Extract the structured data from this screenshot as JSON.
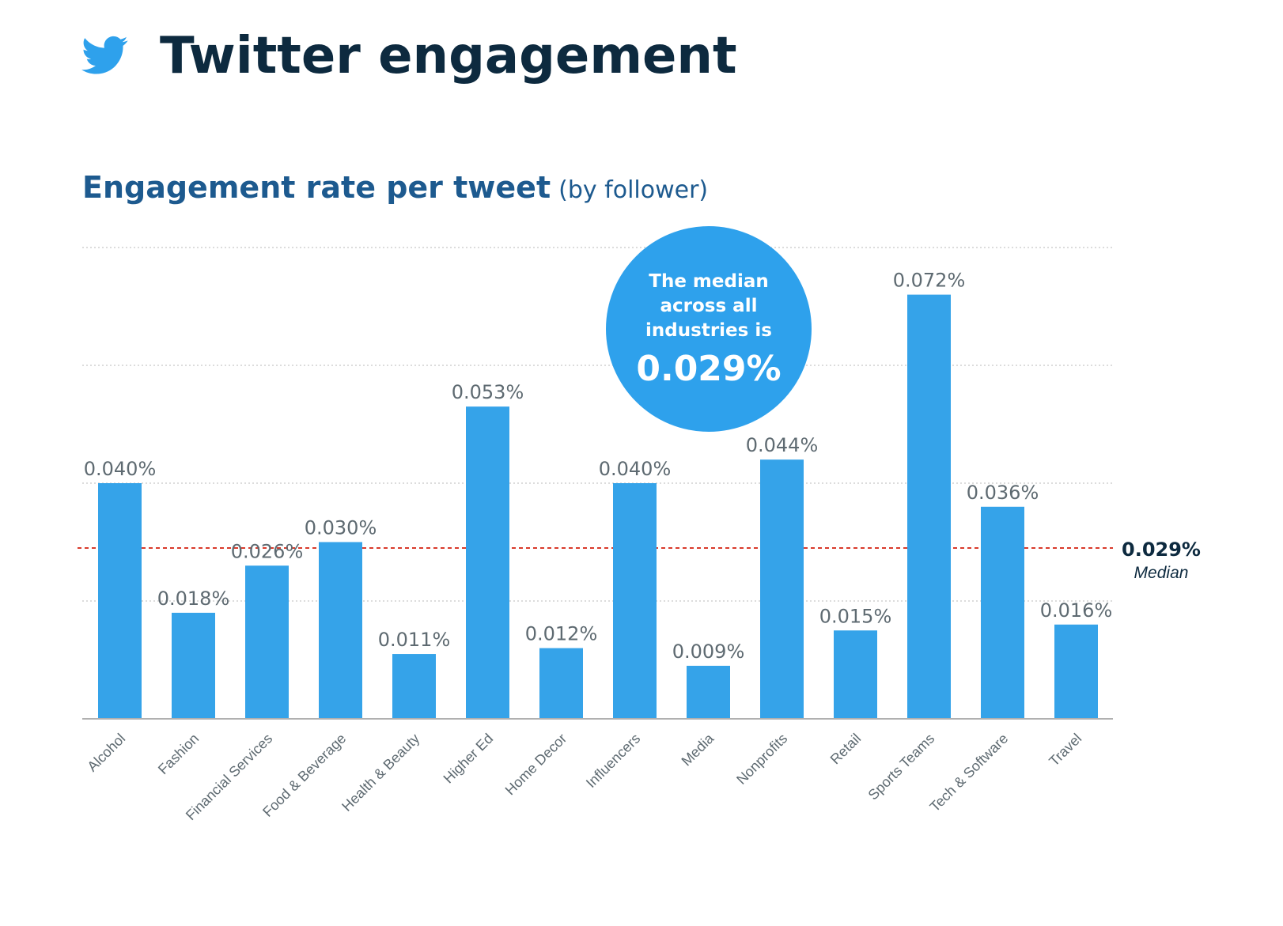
{
  "header": {
    "title": "Twitter engagement",
    "icon": "twitter-bird-icon",
    "title_color": "#0d2a3f",
    "icon_color": "#2ea1ec"
  },
  "chart_data": {
    "type": "bar",
    "title": "Engagement rate per tweet",
    "subtitle_note": "(by follower)",
    "categories": [
      "Alcohol",
      "Fashion",
      "Financial Services",
      "Food & Beverage",
      "Health & Beauty",
      "Higher Ed",
      "Home Decor",
      "Influencers",
      "Media",
      "Nonprofits",
      "Retail",
      "Sports Teams",
      "Tech & Software",
      "Travel"
    ],
    "values": [
      0.04,
      0.018,
      0.026,
      0.03,
      0.011,
      0.053,
      0.012,
      0.04,
      0.009,
      0.044,
      0.015,
      0.072,
      0.036,
      0.016
    ],
    "value_labels": [
      "0.040%",
      "0.018%",
      "0.026%",
      "0.030%",
      "0.011%",
      "0.053%",
      "0.012%",
      "0.040%",
      "0.009%",
      "0.044%",
      "0.015%",
      "0.072%",
      "0.036%",
      "0.016%"
    ],
    "ylim": [
      0,
      0.08
    ],
    "grid": true,
    "median": {
      "value": 0.029,
      "value_label": "0.029%",
      "label": "Median",
      "color": "#d93a2b"
    },
    "callout": {
      "lines": [
        "The median",
        "across all",
        "industries is"
      ],
      "value": "0.029%",
      "color": "#2ea1ec"
    },
    "colors": {
      "bar": "#35a3e9",
      "subtitle": "#1d5a8f",
      "value_label": "#5e6a71",
      "tick_label": "#5e6a71",
      "grid": "#c8c8c8",
      "axis": "#b0b0b0",
      "median_text": "#0d2a3f"
    }
  }
}
